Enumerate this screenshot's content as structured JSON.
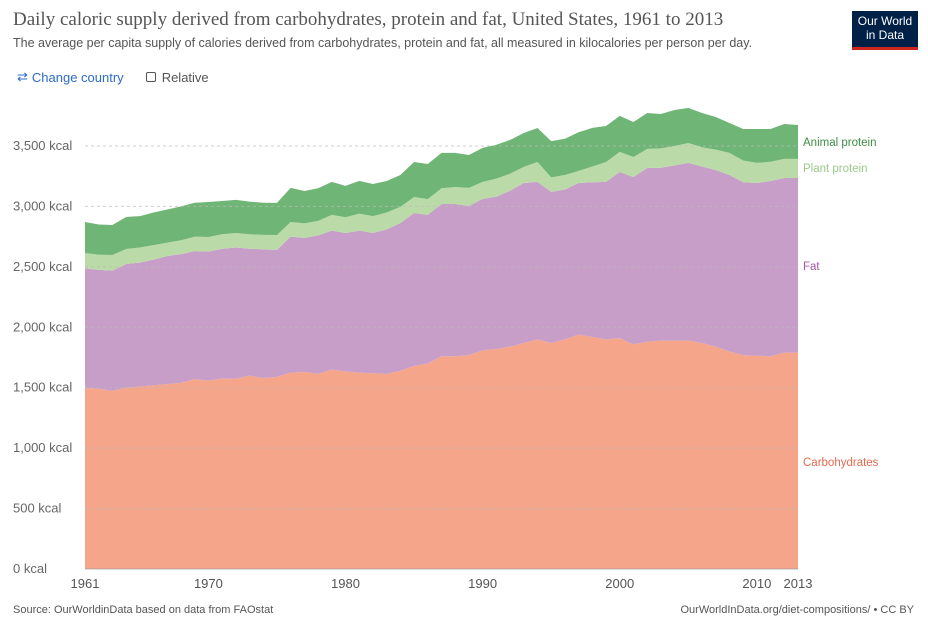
{
  "header": {
    "title": "Daily caloric supply derived from carbohydrates, protein and fat, United States, 1961 to 2013",
    "subtitle": "The average per capita supply of calories derived from carbohydrates, protein and fat, all measured in kilocalories per person per day.",
    "logo": "Our World in Data"
  },
  "controls": {
    "change_country": "Change country",
    "change_icon": "swap-arrows-icon",
    "relative": "Relative"
  },
  "footer": {
    "source": "Source: OurWorldinData based on data from FAOstat",
    "link": "OurWorldInData.org/diet-compositions/ • CC BY"
  },
  "chart_data": {
    "type": "area",
    "stacked": true,
    "ylim": [
      0,
      3800
    ],
    "grid": true,
    "legend": "right (inline labels)",
    "yticks": [
      "0 kcal",
      "500 kcal",
      "1,000 kcal",
      "1,500 kcal",
      "2,000 kcal",
      "2,500 kcal",
      "3,000 kcal",
      "3,500 kcal"
    ],
    "xticks": [
      "1961",
      "1970",
      "1980",
      "1990",
      "2000",
      "2010",
      "2013"
    ],
    "x": [
      1961,
      1962,
      1963,
      1964,
      1965,
      1966,
      1967,
      1968,
      1969,
      1970,
      1971,
      1972,
      1973,
      1974,
      1975,
      1976,
      1977,
      1978,
      1979,
      1980,
      1981,
      1982,
      1983,
      1984,
      1985,
      1986,
      1987,
      1988,
      1989,
      1990,
      1991,
      1992,
      1993,
      1994,
      1995,
      1996,
      1997,
      1998,
      1999,
      2000,
      2001,
      2002,
      2003,
      2004,
      2005,
      2006,
      2007,
      2008,
      2009,
      2010,
      2011,
      2012,
      2013
    ],
    "series": [
      {
        "name": "Carbohydrates",
        "color": "#f4a58a",
        "label_color": "#e5694e",
        "values": [
          1500,
          1490,
          1475,
          1500,
          1510,
          1520,
          1530,
          1540,
          1570,
          1560,
          1575,
          1575,
          1600,
          1580,
          1590,
          1625,
          1630,
          1615,
          1650,
          1635,
          1625,
          1620,
          1615,
          1640,
          1680,
          1700,
          1760,
          1760,
          1770,
          1810,
          1820,
          1840,
          1870,
          1900,
          1870,
          1900,
          1940,
          1920,
          1900,
          1910,
          1860,
          1880,
          1890,
          1890,
          1890,
          1870,
          1840,
          1800,
          1770,
          1765,
          1760,
          1790,
          1790
        ]
      },
      {
        "name": "Fat",
        "color": "#c79ec8",
        "label_color": "#a456a8",
        "values": [
          988,
          985,
          994,
          1024,
          1025,
          1040,
          1060,
          1065,
          1060,
          1066,
          1075,
          1085,
          1050,
          1065,
          1050,
          1125,
          1110,
          1145,
          1150,
          1145,
          1175,
          1160,
          1195,
          1223,
          1266,
          1230,
          1260,
          1260,
          1234,
          1252,
          1260,
          1290,
          1324,
          1303,
          1250,
          1240,
          1254,
          1280,
          1303,
          1375,
          1384,
          1438,
          1430,
          1450,
          1470,
          1460,
          1460,
          1460,
          1430,
          1429,
          1450,
          1445,
          1445
        ]
      },
      {
        "name": "Plant protein",
        "color": "#badba8",
        "label_color": "#9bc98a",
        "values": [
          127,
          125,
          129,
          124,
          125,
          120,
          110,
          115,
          120,
          121,
          120,
          120,
          120,
          120,
          124,
          121,
          120,
          120,
          130,
          130,
          140,
          140,
          140,
          133,
          132,
          130,
          130,
          141,
          149,
          141,
          150,
          140,
          133,
          165,
          120,
          120,
          100,
          130,
          165,
          166,
          165,
          158,
          160,
          160,
          165,
          160,
          170,
          183,
          180,
          166,
          160,
          158,
          158
        ]
      },
      {
        "name": "Animal protein",
        "color": "#6fb575",
        "label_color": "#3d8e45",
        "values": [
          256,
          250,
          248,
          265,
          260,
          270,
          275,
          280,
          280,
          290,
          275,
          274,
          270,
          265,
          265,
          282,
          268,
          270,
          273,
          260,
          271,
          266,
          260,
          264,
          290,
          291,
          293,
          282,
          273,
          281,
          280,
          280,
          281,
          281,
          300,
          300,
          320,
          320,
          298,
          298,
          290,
          297,
          285,
          298,
          290,
          283,
          270,
          247,
          261,
          281,
          271,
          289,
          281
        ]
      }
    ]
  }
}
